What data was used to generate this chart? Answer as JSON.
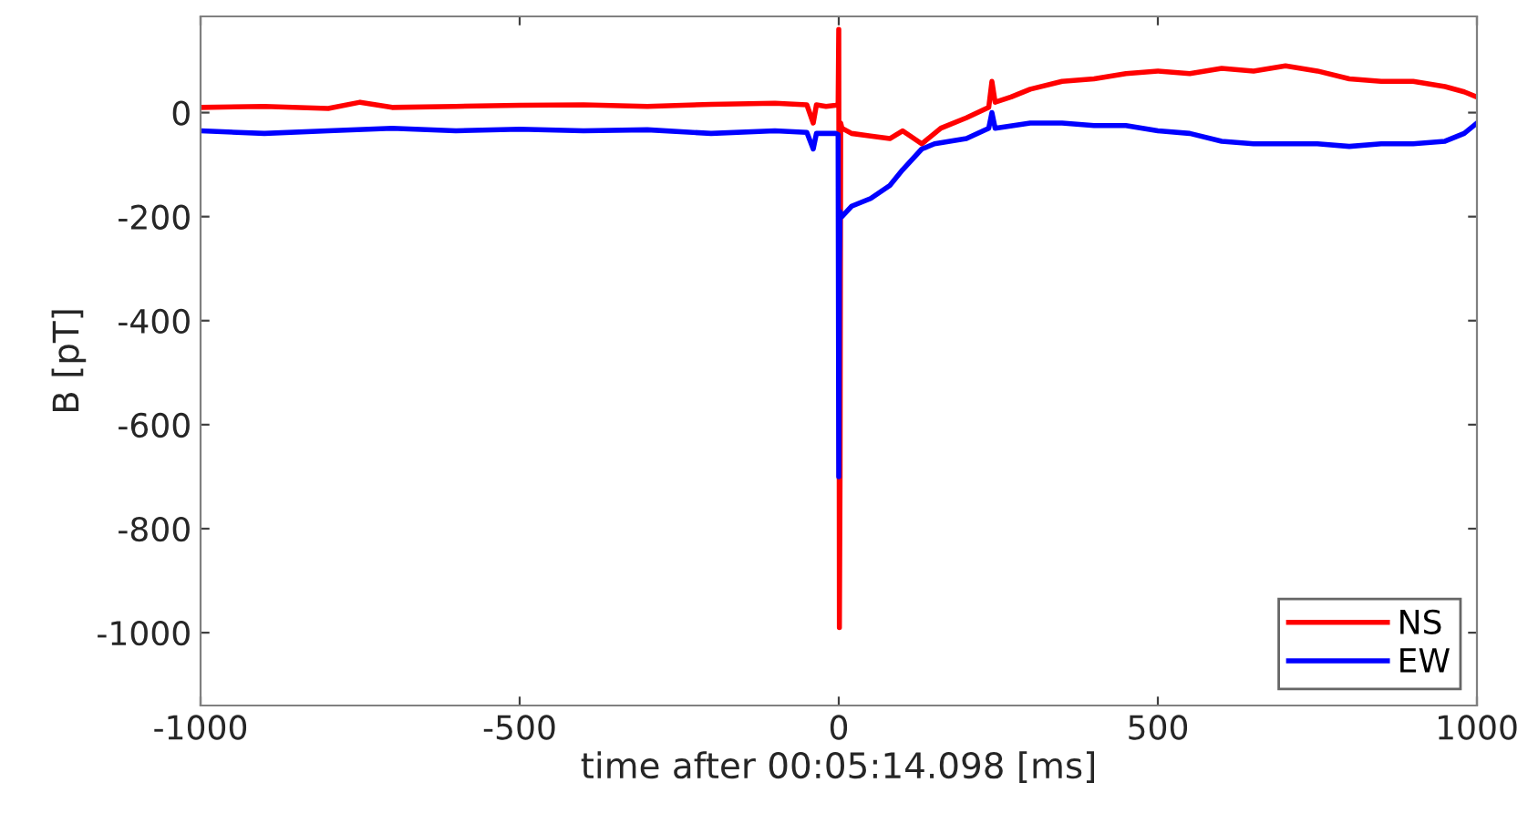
{
  "chart_data": {
    "type": "line",
    "xlabel": "time after 00:05:14.098 [ms]",
    "ylabel": "B [pT]",
    "xlim": [
      -1000,
      1000
    ],
    "ylim": [
      -1140,
      185
    ],
    "xticks": [
      -1000,
      -500,
      0,
      500,
      1000
    ],
    "yticks": [
      -1000,
      -800,
      -600,
      -400,
      -200,
      0
    ],
    "legend": "bottom right",
    "grid": false,
    "marker": "none",
    "line_style": "solid",
    "series": [
      {
        "name": "NS",
        "color": "#ff0000",
        "x": [
          -1000,
          -900,
          -800,
          -750,
          -700,
          -600,
          -500,
          -400,
          -300,
          -200,
          -100,
          -50,
          -40,
          -35,
          -20,
          -5,
          -1,
          0,
          1,
          2,
          3,
          5,
          20,
          50,
          80,
          100,
          130,
          160,
          200,
          235,
          240,
          245,
          270,
          300,
          350,
          400,
          450,
          500,
          550,
          600,
          650,
          700,
          750,
          800,
          850,
          900,
          950,
          980,
          1000
        ],
        "values": [
          10,
          12,
          8,
          20,
          10,
          12,
          14,
          15,
          12,
          16,
          18,
          15,
          -20,
          15,
          12,
          14,
          15,
          160,
          -990,
          -700,
          -20,
          -30,
          -40,
          -45,
          -50,
          -35,
          -60,
          -30,
          -10,
          10,
          60,
          20,
          30,
          45,
          60,
          65,
          75,
          80,
          75,
          85,
          80,
          90,
          80,
          65,
          60,
          60,
          50,
          40,
          30
        ]
      },
      {
        "name": "EW",
        "color": "#0000ff",
        "x": [
          -1000,
          -900,
          -800,
          -700,
          -600,
          -500,
          -400,
          -300,
          -200,
          -100,
          -50,
          -40,
          -35,
          -20,
          -5,
          -1,
          0,
          1,
          2,
          5,
          20,
          50,
          80,
          100,
          130,
          150,
          200,
          235,
          240,
          245,
          300,
          350,
          400,
          450,
          500,
          550,
          600,
          650,
          700,
          750,
          800,
          850,
          900,
          950,
          980,
          1000
        ],
        "values": [
          -35,
          -40,
          -35,
          -30,
          -35,
          -32,
          -35,
          -33,
          -40,
          -35,
          -38,
          -70,
          -40,
          -40,
          -40,
          -42,
          -700,
          -300,
          -190,
          -200,
          -180,
          -165,
          -140,
          -110,
          -70,
          -60,
          -50,
          -30,
          0,
          -30,
          -20,
          -20,
          -25,
          -25,
          -35,
          -40,
          -55,
          -60,
          -60,
          -60,
          -65,
          -60,
          -60,
          -55,
          -40,
          -20
        ]
      }
    ]
  }
}
